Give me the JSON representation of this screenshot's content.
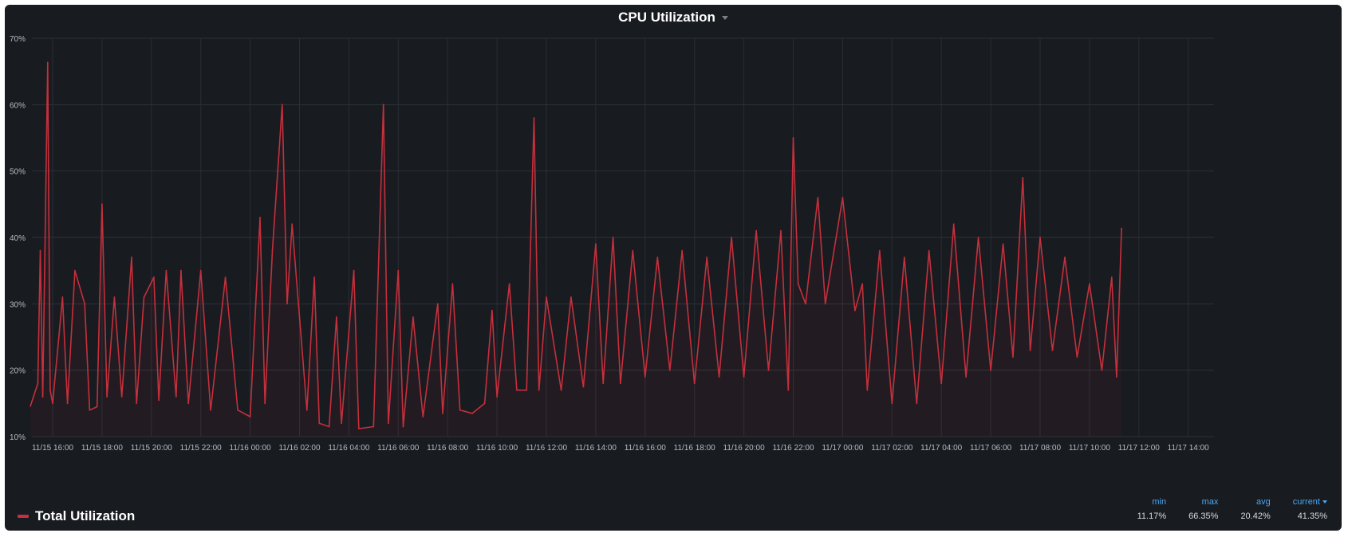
{
  "panel": {
    "title": "CPU Utilization"
  },
  "legend": {
    "items": [
      {
        "label": "Total Utilization",
        "color": "#c4303c"
      }
    ]
  },
  "stats": {
    "headers": {
      "min": "min",
      "max": "max",
      "avg": "avg",
      "current": "current"
    },
    "values": {
      "min": "11.17%",
      "max": "66.35%",
      "avg": "20.42%",
      "current": "41.35%"
    }
  },
  "chart_data": {
    "type": "line",
    "title": "CPU Utilization",
    "xlabel": "",
    "ylabel": "",
    "ylim": [
      10,
      70
    ],
    "y_ticks": [
      "10%",
      "20%",
      "30%",
      "40%",
      "50%",
      "60%",
      "70%"
    ],
    "x_ticks": [
      "11/15 16:00",
      "11/15 18:00",
      "11/15 20:00",
      "11/15 22:00",
      "11/16 00:00",
      "11/16 02:00",
      "11/16 04:00",
      "11/16 06:00",
      "11/16 08:00",
      "11/16 10:00",
      "11/16 12:00",
      "11/16 14:00",
      "11/16 16:00",
      "11/16 18:00",
      "11/16 20:00",
      "11/16 22:00",
      "11/17 00:00",
      "11/17 02:00",
      "11/17 04:00",
      "11/17 06:00",
      "11/17 08:00",
      "11/17 10:00",
      "11/17 12:00",
      "11/17 14:00"
    ],
    "grid": true,
    "legend": "bottom-left",
    "color": "#c4303c",
    "series": [
      {
        "name": "Total Utilization",
        "points": [
          [
            -0.9,
            14.6
          ],
          [
            -0.6,
            18
          ],
          [
            -0.5,
            38
          ],
          [
            -0.4,
            16
          ],
          [
            -0.2,
            66.35
          ],
          [
            -0.1,
            17
          ],
          [
            0.0,
            15
          ],
          [
            0.4,
            31
          ],
          [
            0.6,
            15
          ],
          [
            0.9,
            35
          ],
          [
            1.3,
            30
          ],
          [
            1.5,
            14
          ],
          [
            1.8,
            14.5
          ],
          [
            2.0,
            45
          ],
          [
            2.2,
            16
          ],
          [
            2.5,
            31
          ],
          [
            2.8,
            16
          ],
          [
            3.2,
            37
          ],
          [
            3.4,
            15
          ],
          [
            3.7,
            31
          ],
          [
            4.1,
            34
          ],
          [
            4.3,
            15.5
          ],
          [
            4.6,
            35
          ],
          [
            5.0,
            16
          ],
          [
            5.2,
            35
          ],
          [
            5.5,
            15
          ],
          [
            6.0,
            35
          ],
          [
            6.4,
            14
          ],
          [
            7.0,
            34
          ],
          [
            7.5,
            14
          ],
          [
            8.0,
            13
          ],
          [
            8.4,
            43
          ],
          [
            8.6,
            15
          ],
          [
            8.9,
            38
          ],
          [
            9.3,
            60
          ],
          [
            9.5,
            30
          ],
          [
            9.7,
            42
          ],
          [
            10.0,
            28
          ],
          [
            10.3,
            14
          ],
          [
            10.6,
            34
          ],
          [
            10.8,
            12
          ],
          [
            11.2,
            11.5
          ],
          [
            11.5,
            28
          ],
          [
            11.7,
            12
          ],
          [
            12.2,
            35
          ],
          [
            12.4,
            11.2
          ],
          [
            13.0,
            11.5
          ],
          [
            13.4,
            60
          ],
          [
            13.6,
            12
          ],
          [
            14.0,
            35
          ],
          [
            14.2,
            11.5
          ],
          [
            14.6,
            28
          ],
          [
            15.0,
            13
          ],
          [
            15.6,
            30
          ],
          [
            15.8,
            13.5
          ],
          [
            16.2,
            33
          ],
          [
            16.5,
            14
          ],
          [
            17.0,
            13.5
          ],
          [
            17.5,
            15
          ],
          [
            17.8,
            29
          ],
          [
            18.0,
            16
          ],
          [
            18.5,
            33
          ],
          [
            18.8,
            17
          ],
          [
            19.2,
            17
          ],
          [
            19.5,
            58
          ],
          [
            19.7,
            17
          ],
          [
            20.0,
            31
          ],
          [
            20.6,
            17
          ],
          [
            21.0,
            31
          ],
          [
            21.5,
            17.5
          ],
          [
            22.0,
            39
          ],
          [
            22.3,
            18
          ],
          [
            22.7,
            40
          ],
          [
            23.0,
            18
          ],
          [
            23.5,
            38
          ],
          [
            24.0,
            19
          ],
          [
            24.5,
            37
          ],
          [
            25.0,
            20
          ],
          [
            25.5,
            38
          ],
          [
            26.0,
            18
          ],
          [
            26.5,
            37
          ],
          [
            27.0,
            19
          ],
          [
            27.5,
            40
          ],
          [
            28.0,
            19
          ],
          [
            28.5,
            41
          ],
          [
            29.0,
            20
          ],
          [
            29.5,
            41
          ],
          [
            29.8,
            17
          ],
          [
            30.0,
            55
          ],
          [
            30.2,
            33
          ],
          [
            30.5,
            30
          ],
          [
            31.0,
            46
          ],
          [
            31.3,
            30
          ],
          [
            32.0,
            46
          ],
          [
            32.5,
            29
          ],
          [
            32.8,
            33
          ],
          [
            33.0,
            17
          ],
          [
            33.5,
            38
          ],
          [
            34.0,
            15
          ],
          [
            34.5,
            37
          ],
          [
            35.0,
            15
          ],
          [
            35.5,
            38
          ],
          [
            36.0,
            18
          ],
          [
            36.5,
            42
          ],
          [
            37.0,
            19
          ],
          [
            37.5,
            40
          ],
          [
            38.0,
            20
          ],
          [
            38.5,
            39
          ],
          [
            38.9,
            22
          ],
          [
            39.3,
            49
          ],
          [
            39.6,
            23
          ],
          [
            40.0,
            40
          ],
          [
            40.5,
            23
          ],
          [
            41.0,
            37
          ],
          [
            41.5,
            22
          ],
          [
            42.0,
            33
          ],
          [
            42.5,
            20
          ],
          [
            42.9,
            34
          ],
          [
            43.1,
            19
          ],
          [
            43.3,
            41.35
          ]
        ]
      }
    ]
  }
}
